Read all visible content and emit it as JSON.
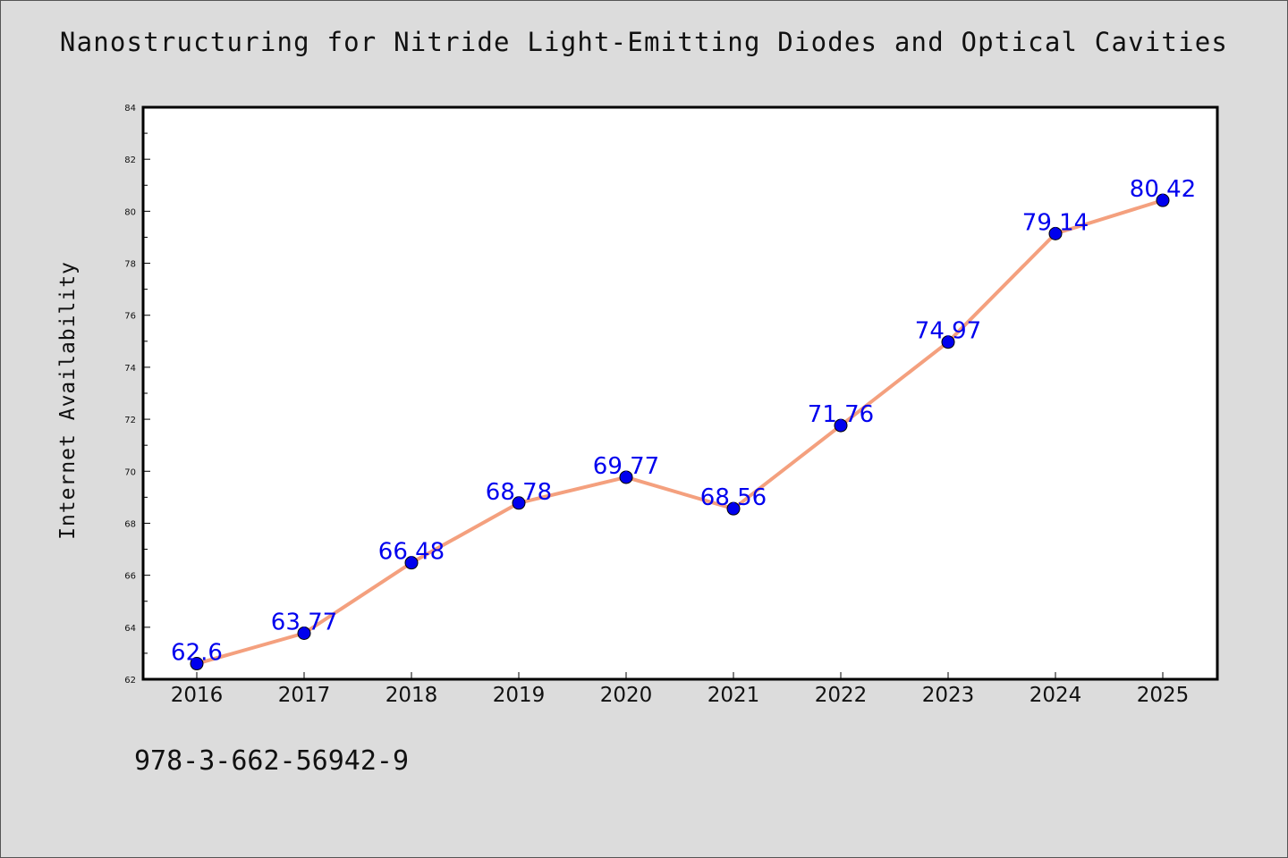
{
  "chart_data": {
    "type": "line",
    "title": "Nanostructuring for Nitride Light-Emitting Diodes and Optical Cavities",
    "xlabel": "",
    "ylabel": "Internet Availability",
    "categories": [
      "2016",
      "2017",
      "2018",
      "2019",
      "2020",
      "2021",
      "2022",
      "2023",
      "2024",
      "2025"
    ],
    "series": [
      {
        "values": [
          62.6,
          63.77,
          66.48,
          68.78,
          69.77,
          68.56,
          71.76,
          74.97,
          79.14,
          80.42
        ],
        "labels": [
          "62.6",
          "63.77",
          "66.48",
          "68.78",
          "69.77",
          "68.56",
          "71.76",
          "74.97",
          "79.14",
          "80.42"
        ],
        "line_color": "#f4a07e",
        "marker_color": "#0000ee"
      }
    ],
    "ylim": [
      62,
      84
    ],
    "yticks": [
      "62",
      "64",
      "66",
      "68",
      "70",
      "72",
      "74",
      "76",
      "78",
      "80",
      "82",
      "84"
    ],
    "grid": false,
    "legend": "none"
  },
  "footer_text": "978-3-662-56942-9",
  "colors": {
    "background": "#dcdcdc",
    "plot_background": "#ffffff",
    "line": "#f4a07e",
    "marker": "#0000ee",
    "data_label": "#0000ee"
  }
}
